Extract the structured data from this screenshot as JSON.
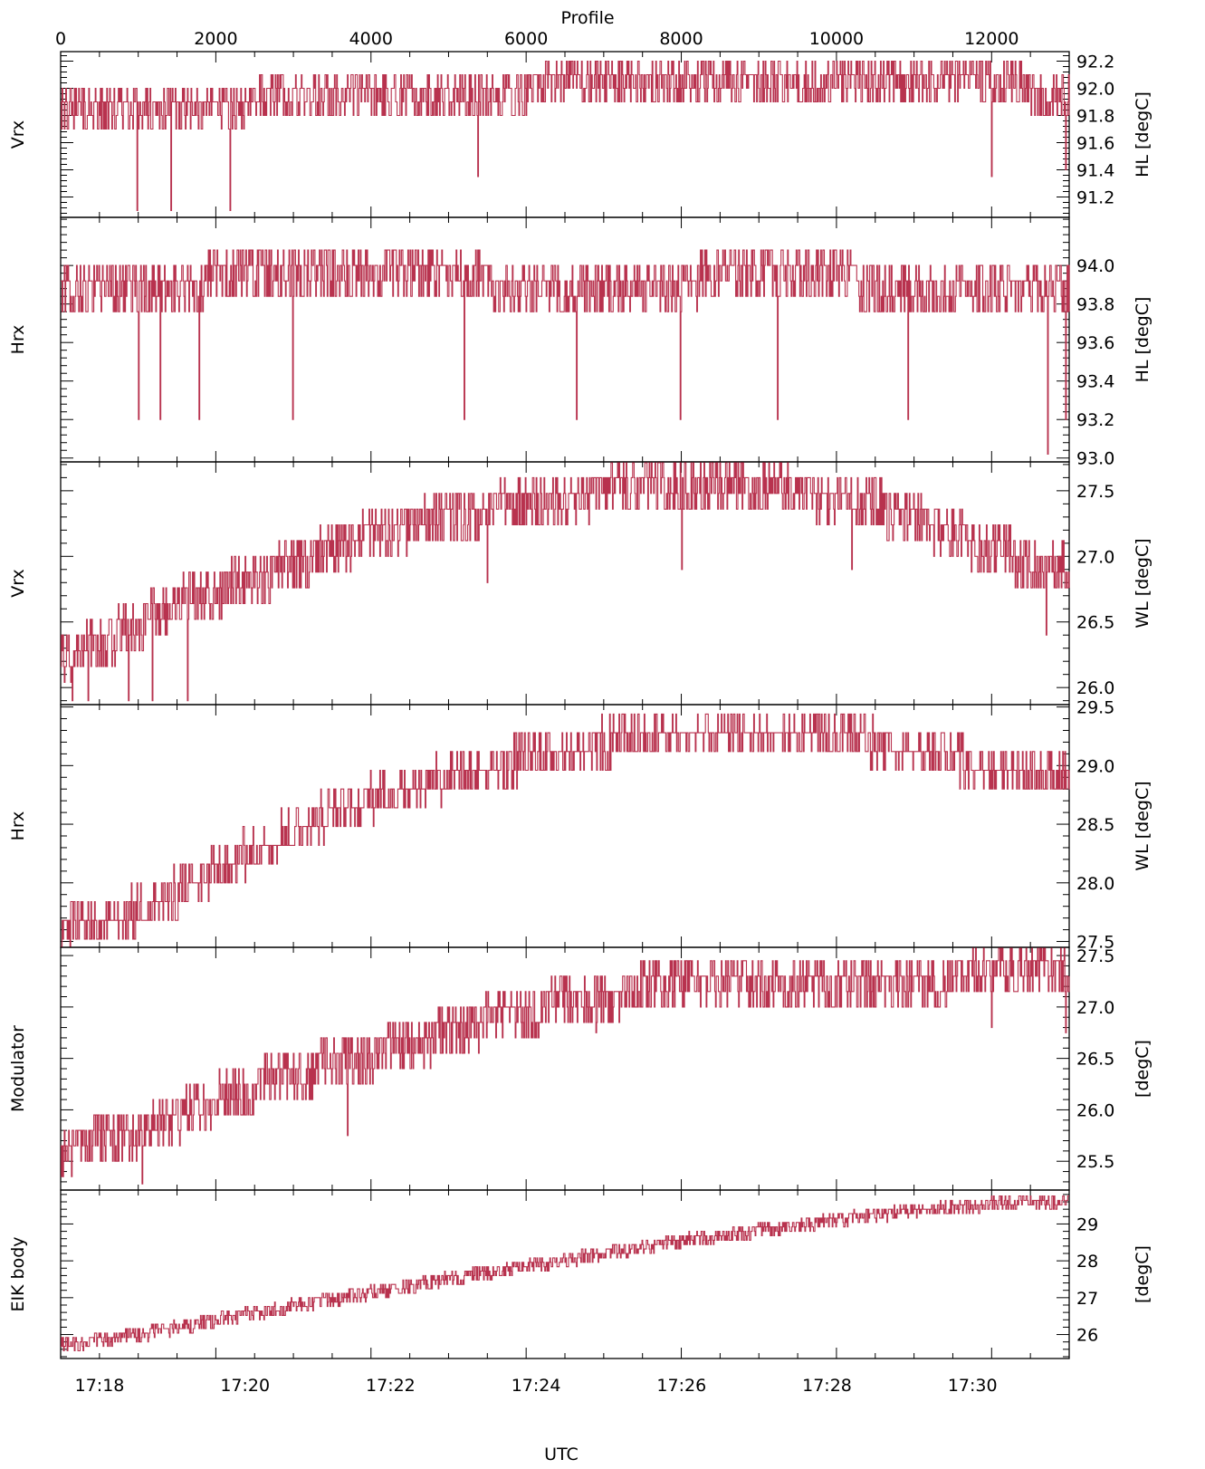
{
  "top_axis": {
    "label": "Profile",
    "ticks": [
      "0",
      "2000",
      "4000",
      "6000",
      "8000",
      "10000",
      "12000"
    ]
  },
  "bottom_axis": {
    "label": "UTC",
    "ticks": [
      "17:18",
      "17:20",
      "17:22",
      "17:24",
      "17:26",
      "17:28",
      "17:30"
    ]
  },
  "series_color": "#b8324e",
  "chart_data": [
    {
      "type": "line",
      "panel": 1,
      "left_label": "Vrx",
      "right_label": "HL  [degC]",
      "yticks": [
        "91.2",
        "91.4",
        "91.6",
        "91.8",
        "92.0",
        "92.2"
      ],
      "ylim": [
        91.05,
        92.27
      ],
      "xlim_profile": [
        0,
        13000
      ],
      "trend": [
        [
          0,
          91.88
        ],
        [
          1000,
          91.88
        ],
        [
          2000,
          91.92
        ],
        [
          3000,
          92.0
        ],
        [
          4000,
          92.02
        ],
        [
          5000,
          92.02
        ],
        [
          6000,
          92.05
        ],
        [
          7000,
          92.1
        ],
        [
          8000,
          92.12
        ],
        [
          9000,
          92.12
        ],
        [
          10000,
          92.1
        ],
        [
          11000,
          92.1
        ],
        [
          12000,
          92.1
        ],
        [
          13000,
          92.0
        ]
      ],
      "noise": 0.1,
      "levels_step": 0.1,
      "dips": [
        [
          980,
          91.1
        ],
        [
          1420,
          91.1
        ],
        [
          2180,
          91.1
        ],
        [
          5380,
          91.35
        ],
        [
          12000,
          91.35
        ],
        [
          12950,
          91.4
        ]
      ]
    },
    {
      "type": "line",
      "panel": 2,
      "left_label": "Hrx",
      "right_label": "HL  [degC]",
      "yticks": [
        "93.0",
        "93.2",
        "93.4",
        "93.6",
        "93.8",
        "94.0"
      ],
      "ylim": [
        92.98,
        94.25
      ],
      "xlim_profile": [
        0,
        13000
      ],
      "trend": [
        [
          0,
          93.92
        ],
        [
          1500,
          93.92
        ],
        [
          2000,
          93.98
        ],
        [
          3500,
          94.02
        ],
        [
          5000,
          94.0
        ],
        [
          6000,
          93.92
        ],
        [
          8000,
          93.92
        ],
        [
          8500,
          94.02
        ],
        [
          10000,
          94.0
        ],
        [
          10500,
          93.92
        ],
        [
          13000,
          93.92
        ]
      ],
      "noise": 0.08,
      "levels_step": 0.08,
      "dips": [
        [
          1000,
          93.2
        ],
        [
          1280,
          93.2
        ],
        [
          1780,
          93.2
        ],
        [
          2990,
          93.2
        ],
        [
          5200,
          93.2
        ],
        [
          6650,
          93.2
        ],
        [
          7990,
          93.2
        ],
        [
          9240,
          93.2
        ],
        [
          10920,
          93.2
        ],
        [
          12720,
          93.02
        ],
        [
          12950,
          93.2
        ]
      ]
    },
    {
      "type": "line",
      "panel": 3,
      "left_label": "Vrx",
      "right_label": "WL  [degC]",
      "yticks": [
        "26.0",
        "26.5",
        "27.0",
        "27.5"
      ],
      "ylim": [
        25.87,
        27.72
      ],
      "xlim_profile": [
        0,
        13000
      ],
      "trend": [
        [
          0,
          26.3
        ],
        [
          500,
          26.4
        ],
        [
          1000,
          26.55
        ],
        [
          1500,
          26.7
        ],
        [
          2000,
          26.8
        ],
        [
          2500,
          26.9
        ],
        [
          3000,
          27.0
        ],
        [
          3500,
          27.12
        ],
        [
          4000,
          27.22
        ],
        [
          4500,
          27.3
        ],
        [
          5000,
          27.35
        ],
        [
          5500,
          27.42
        ],
        [
          6000,
          27.48
        ],
        [
          6500,
          27.52
        ],
        [
          7000,
          27.55
        ],
        [
          7500,
          27.58
        ],
        [
          8000,
          27.6
        ],
        [
          8500,
          27.6
        ],
        [
          9000,
          27.6
        ],
        [
          9500,
          27.55
        ],
        [
          10000,
          27.52
        ],
        [
          10500,
          27.45
        ],
        [
          11000,
          27.35
        ],
        [
          11500,
          27.22
        ],
        [
          12000,
          27.12
        ],
        [
          12500,
          27.02
        ],
        [
          13000,
          26.95
        ]
      ],
      "noise": 0.12,
      "levels_step": 0.12,
      "dips": [
        [
          150,
          25.9
        ],
        [
          350,
          25.9
        ],
        [
          870,
          25.9
        ],
        [
          1180,
          25.9
        ],
        [
          1630,
          25.9
        ],
        [
          5500,
          26.8
        ],
        [
          8000,
          26.9
        ],
        [
          10200,
          26.9
        ],
        [
          12700,
          26.4
        ]
      ]
    },
    {
      "type": "line",
      "panel": 4,
      "left_label": "Hrx",
      "right_label": "WL  [degC]",
      "yticks": [
        "27.5",
        "28.0",
        "28.5",
        "29.0",
        "29.5"
      ],
      "ylim": [
        27.45,
        29.52
      ],
      "xlim_profile": [
        0,
        13000
      ],
      "trend": [
        [
          0,
          27.6
        ],
        [
          500,
          27.68
        ],
        [
          1000,
          27.8
        ],
        [
          1500,
          27.95
        ],
        [
          2000,
          28.12
        ],
        [
          2500,
          28.32
        ],
        [
          3000,
          28.48
        ],
        [
          3500,
          28.62
        ],
        [
          4000,
          28.74
        ],
        [
          4500,
          28.85
        ],
        [
          5000,
          28.92
        ],
        [
          5500,
          29.02
        ],
        [
          6000,
          29.08
        ],
        [
          6500,
          29.15
        ],
        [
          7000,
          29.22
        ],
        [
          7500,
          29.28
        ],
        [
          8000,
          29.32
        ],
        [
          8500,
          29.35
        ],
        [
          9000,
          29.35
        ],
        [
          9500,
          29.32
        ],
        [
          10000,
          29.28
        ],
        [
          10500,
          29.22
        ],
        [
          11000,
          29.15
        ],
        [
          11500,
          29.08
        ],
        [
          12000,
          29.0
        ],
        [
          12500,
          28.95
        ],
        [
          13000,
          28.92
        ]
      ],
      "noise": 0.08,
      "levels_step": 0.16,
      "dips": []
    },
    {
      "type": "line",
      "panel": 5,
      "left_label": "Modulator",
      "right_label": "[degC]",
      "yticks": [
        "25.5",
        "26.0",
        "26.5",
        "27.0",
        "27.5"
      ],
      "ylim": [
        25.22,
        27.58
      ],
      "xlim_profile": [
        0,
        13000
      ],
      "trend": [
        [
          0,
          25.7
        ],
        [
          500,
          25.78
        ],
        [
          1000,
          25.85
        ],
        [
          1500,
          26.0
        ],
        [
          2000,
          26.18
        ],
        [
          2500,
          26.32
        ],
        [
          3000,
          26.42
        ],
        [
          3500,
          26.52
        ],
        [
          4000,
          26.62
        ],
        [
          4500,
          26.72
        ],
        [
          5000,
          26.82
        ],
        [
          5500,
          26.95
        ],
        [
          6000,
          27.05
        ],
        [
          6500,
          27.12
        ],
        [
          7000,
          27.2
        ],
        [
          7500,
          27.25
        ],
        [
          8000,
          27.3
        ],
        [
          8500,
          27.32
        ],
        [
          9000,
          27.32
        ],
        [
          9500,
          27.32
        ],
        [
          10000,
          27.35
        ],
        [
          10500,
          27.35
        ],
        [
          11000,
          27.35
        ],
        [
          11500,
          27.38
        ],
        [
          12000,
          27.4
        ],
        [
          12500,
          27.42
        ],
        [
          13000,
          27.42
        ]
      ],
      "noise": 0.1,
      "levels_step": 0.15,
      "dips": [
        [
          1050,
          25.28
        ],
        [
          3700,
          25.75
        ],
        [
          6900,
          26.75
        ],
        [
          12000,
          26.8
        ],
        [
          12950,
          26.75
        ]
      ]
    },
    {
      "type": "line",
      "panel": 6,
      "left_label": "EIK body",
      "right_label": "[degC]",
      "yticks": [
        "26",
        "27",
        "28",
        "29"
      ],
      "ylim": [
        25.35,
        29.92
      ],
      "xlim_profile": [
        0,
        13000
      ],
      "trend": [
        [
          0,
          25.75
        ],
        [
          1000,
          26.05
        ],
        [
          2000,
          26.45
        ],
        [
          3000,
          26.85
        ],
        [
          4000,
          27.2
        ],
        [
          5000,
          27.58
        ],
        [
          6000,
          27.92
        ],
        [
          7000,
          28.25
        ],
        [
          8000,
          28.62
        ],
        [
          9000,
          28.88
        ],
        [
          10000,
          29.18
        ],
        [
          11000,
          29.42
        ],
        [
          12000,
          29.6
        ],
        [
          13000,
          29.72
        ]
      ],
      "noise": 0.12,
      "levels_step": 0.12,
      "dips": []
    }
  ]
}
